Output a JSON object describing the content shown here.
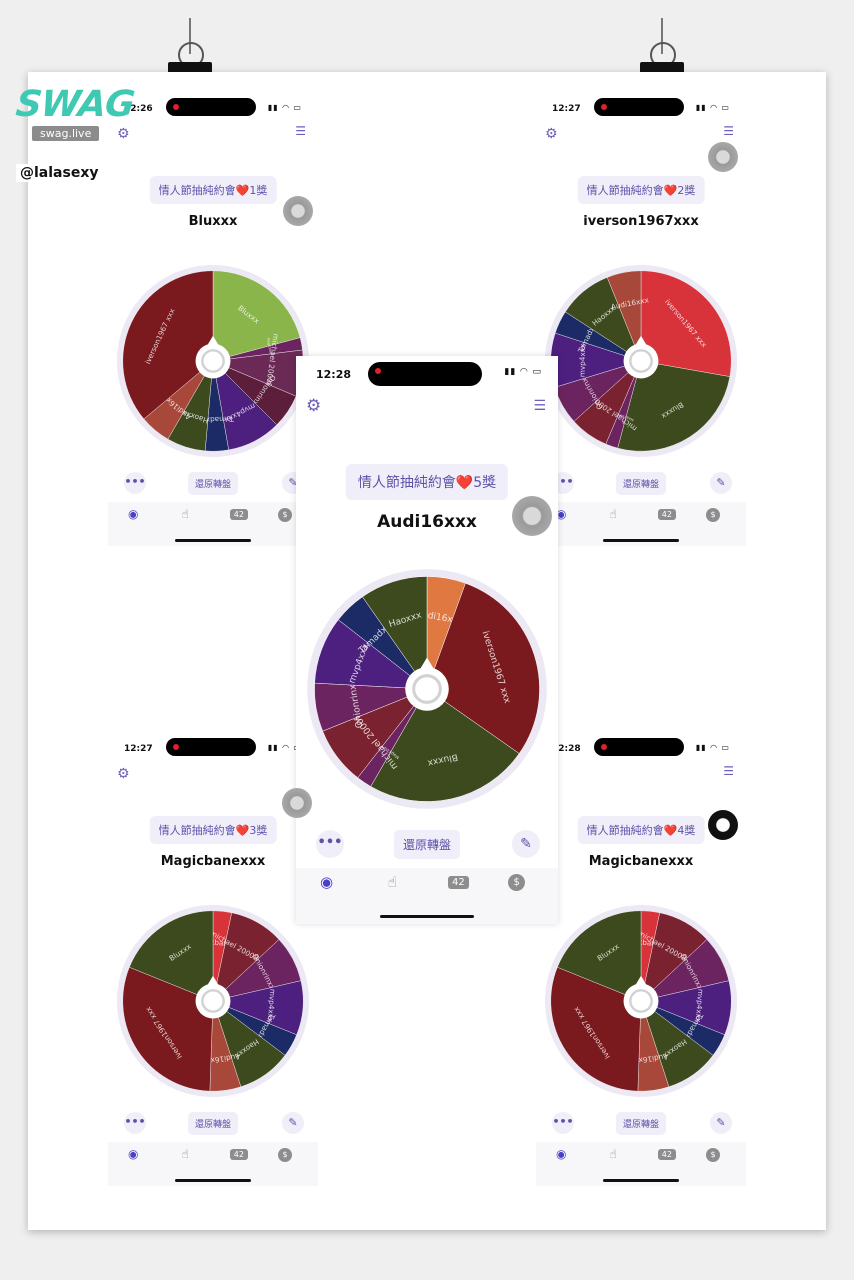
{
  "watermark": {
    "logo_text": "SWAG",
    "domain": "swag.live",
    "handle": "@lalasexy"
  },
  "labels": {
    "reset": "還原轉盤",
    "more": "•••",
    "badge": "42",
    "coin": "$"
  },
  "colors": {
    "dark_red": "#7a1a1e",
    "dark_green": "#3c4a1d",
    "purple": "#4d1f7e",
    "dark_purple": "#6b2460",
    "navy": "#1c2a66",
    "light_green": "#8ab54a",
    "red": "#d8323a",
    "orange": "#e07841",
    "brown": "#a8483a",
    "maroon": "#7b2230",
    "plum": "#5c1e3a",
    "accent": "#5c53a8"
  },
  "screens": [
    {
      "id": "s1",
      "time": "12:26",
      "prize": "情人節抽純約會❤️1獎",
      "winner": "Bluxxx",
      "segments": [
        {
          "label": "Bluxxx",
          "color": "#8ab54a",
          "span": 75
        },
        {
          "label": "Magicbanexxx",
          "color": "#6b2460",
          "span": 8
        },
        {
          "label": "michael 200089xxx",
          "color": "#6b2a55",
          "span": 30
        },
        {
          "label": "Onionrinxxx",
          "color": "#5c1e3a",
          "span": 22
        },
        {
          "label": "mvp4xxx",
          "color": "#4d1f7e",
          "span": 35
        },
        {
          "label": "Tamadxxx",
          "color": "#1c2a66",
          "span": 15
        },
        {
          "label": "Haoxxx",
          "color": "#3c4a1d",
          "span": 25
        },
        {
          "label": "Audi16xxx",
          "color": "#a8483a",
          "span": 20
        },
        {
          "label": "iverson1967 xxx",
          "color": "#7a1a1e",
          "span": 130
        }
      ]
    },
    {
      "id": "s2",
      "time": "12:27",
      "prize": "情人節抽純約會❤️2獎",
      "winner": "iverson1967xxx",
      "segments": [
        {
          "label": "iverson1967 xxx",
          "color": "#d8323a",
          "span": 100
        },
        {
          "label": "Bluxxx",
          "color": "#3c4a1d",
          "span": 95
        },
        {
          "label": "Magicbanexxx",
          "color": "#6b2460",
          "span": 8
        },
        {
          "label": "michael 200089xxx",
          "color": "#7b2230",
          "span": 25
        },
        {
          "label": "Onionrinxxx",
          "color": "#6b2460",
          "span": 25
        },
        {
          "label": "mvp4xxx",
          "color": "#4d1f7e",
          "span": 35
        },
        {
          "label": "Tamadxxx",
          "color": "#1c2a66",
          "span": 15
        },
        {
          "label": "Haoxxx",
          "color": "#3c4a1d",
          "span": 35
        },
        {
          "label": "Audi16xxx",
          "color": "#a8483a",
          "span": 22
        }
      ]
    },
    {
      "id": "s3",
      "time": "12:27",
      "prize": "情人節抽純約會❤️3獎",
      "winner": "Magicbanexxx",
      "segments": [
        {
          "label": "Magicbanexxx",
          "color": "#d8323a",
          "span": 12
        },
        {
          "label": "michael 200089xxx",
          "color": "#7b2230",
          "span": 35
        },
        {
          "label": "Onionrinxxx",
          "color": "#6b2460",
          "span": 30
        },
        {
          "label": "mvp4xxx",
          "color": "#4d1f7e",
          "span": 35
        },
        {
          "label": "Tamadxxx",
          "color": "#1c2a66",
          "span": 15
        },
        {
          "label": "Haoxxx",
          "color": "#3c4a1d",
          "span": 35
        },
        {
          "label": "Audi16xxx",
          "color": "#a8483a",
          "span": 20
        },
        {
          "label": "iverson1967 xxx",
          "color": "#7a1a1e",
          "span": 110
        },
        {
          "label": "Bluxxx",
          "color": "#3c4a1d",
          "span": 68
        }
      ]
    },
    {
      "id": "s4",
      "time": "12:28",
      "prize": "情人節抽純約會❤️4獎",
      "winner": "Magicbanexxx",
      "segments": [
        {
          "label": "Magicbanexxx",
          "color": "#d8323a",
          "span": 12
        },
        {
          "label": "michael 200089xxx",
          "color": "#7b2230",
          "span": 35
        },
        {
          "label": "Onionrinxxx",
          "color": "#6b2460",
          "span": 30
        },
        {
          "label": "mvp4xxx",
          "color": "#4d1f7e",
          "span": 35
        },
        {
          "label": "Tamadxxx",
          "color": "#1c2a66",
          "span": 15
        },
        {
          "label": "Haoxxx",
          "color": "#3c4a1d",
          "span": 35
        },
        {
          "label": "Audi16xxx",
          "color": "#a8483a",
          "span": 20
        },
        {
          "label": "iverson1967 xxx",
          "color": "#7a1a1e",
          "span": 110
        },
        {
          "label": "Bluxxx",
          "color": "#3c4a1d",
          "span": 68
        }
      ]
    },
    {
      "id": "s5",
      "time": "12:28",
      "prize": "情人節抽純約會❤️5獎",
      "winner": "Audi16xxx",
      "segments": [
        {
          "label": "Audi16xxx",
          "color": "#e07841",
          "span": 20
        },
        {
          "label": "iverson1967 xxx",
          "color": "#7a1a1e",
          "span": 105
        },
        {
          "label": "Bluxxx",
          "color": "#3c4a1d",
          "span": 85
        },
        {
          "label": "Magicbanexxx",
          "color": "#6b2460",
          "span": 8
        },
        {
          "label": "michael 200089xxx",
          "color": "#7b2230",
          "span": 30
        },
        {
          "label": "Onionrinxxx",
          "color": "#6b2460",
          "span": 25
        },
        {
          "label": "mvp4xxx",
          "color": "#4d1f7e",
          "span": 35
        },
        {
          "label": "Tamadxxx",
          "color": "#1c2a66",
          "span": 17
        },
        {
          "label": "Haoxxx",
          "color": "#3c4a1d",
          "span": 35
        }
      ]
    }
  ]
}
